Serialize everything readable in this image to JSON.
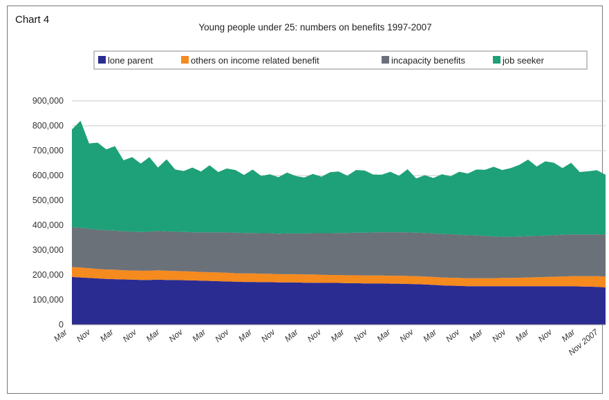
{
  "chart_label": "Chart 4",
  "chart_data": {
    "type": "area",
    "stacked": true,
    "title": "Young people under 25: numbers on benefits 1997-2007",
    "xlabel": "",
    "ylabel": "",
    "ylim": [
      0,
      900000
    ],
    "yticks": [
      0,
      100000,
      200000,
      300000,
      400000,
      500000,
      600000,
      700000,
      800000,
      900000
    ],
    "ytick_labels": [
      "0",
      "100,000",
      "200,000",
      "300,000",
      "400,000",
      "500,000",
      "600,000",
      "700,000",
      "800,000",
      "900,000"
    ],
    "grid": true,
    "legend_position": "top",
    "xtick_labels": [
      "Mar",
      "Nov",
      "Mar",
      "Nov",
      "Mar",
      "Nov",
      "Mar",
      "Nov",
      "Mar",
      "Nov",
      "Mar",
      "Nov",
      "Mar",
      "Nov",
      "Mar",
      "Nov",
      "Mar",
      "Nov",
      "Mar",
      "Nov",
      "Mar",
      "Nov",
      "Mar",
      "Nov 2007"
    ],
    "series": [
      {
        "name": "lone parent",
        "color": "#2b2c91",
        "values": [
          192000,
          190000,
          188000,
          186000,
          184000,
          183000,
          182000,
          181000,
          180000,
          180000,
          181000,
          180000,
          180000,
          179000,
          178000,
          177000,
          176000,
          175000,
          174000,
          173000,
          172000,
          172000,
          171000,
          171000,
          170000,
          170000,
          170000,
          169000,
          169000,
          168000,
          168000,
          168000,
          167000,
          167000,
          166000,
          166000,
          166000,
          165000,
          165000,
          164000,
          163000,
          162000,
          160000,
          158000,
          157000,
          156000,
          155000,
          155000,
          155000,
          155000,
          155000,
          155000,
          155000,
          155000,
          155000,
          155000,
          155000,
          155000,
          155000,
          154000,
          153000,
          152000,
          150000
        ]
      },
      {
        "name": "others on income related benefit",
        "color": "#f58a1f",
        "values": [
          40000,
          40000,
          39000,
          38000,
          38000,
          38000,
          37000,
          37000,
          37000,
          37000,
          38000,
          37000,
          36000,
          36000,
          36000,
          35000,
          35000,
          35000,
          35000,
          34000,
          34000,
          34000,
          34000,
          34000,
          33000,
          33000,
          33000,
          33000,
          33000,
          33000,
          32000,
          32000,
          32000,
          32000,
          32000,
          32000,
          32000,
          32000,
          32000,
          32000,
          32000,
          32000,
          32000,
          32000,
          32000,
          32000,
          32000,
          32000,
          32000,
          32000,
          33000,
          33000,
          34000,
          35000,
          36000,
          37000,
          38000,
          39000,
          40000,
          41000,
          42000,
          43000,
          44000
        ]
      },
      {
        "name": "incapacity benefits",
        "color": "#6b7178",
        "values": [
          160000,
          160000,
          159000,
          158000,
          158000,
          157000,
          157000,
          156000,
          156000,
          157000,
          158000,
          158000,
          158000,
          158000,
          158000,
          159000,
          160000,
          161000,
          162000,
          163000,
          163000,
          163000,
          163000,
          163000,
          163000,
          164000,
          164000,
          165000,
          166000,
          167000,
          168000,
          169000,
          170000,
          171000,
          172000,
          173000,
          174000,
          175000,
          175000,
          175000,
          175000,
          175000,
          175000,
          175000,
          175000,
          174000,
          173000,
          172000,
          170000,
          168000,
          166000,
          166000,
          166000,
          166000,
          166000,
          166000,
          167000,
          168000,
          168000,
          168000,
          168000,
          168000,
          168000
        ]
      },
      {
        "name": "job seeker",
        "color": "#1ea178",
        "values": [
          393000,
          430000,
          343000,
          350000,
          325000,
          340000,
          285000,
          300000,
          275000,
          300000,
          255000,
          290000,
          250000,
          245000,
          260000,
          245000,
          270000,
          243000,
          257000,
          252000,
          233000,
          255000,
          230000,
          237000,
          227000,
          245000,
          231000,
          225000,
          238000,
          227000,
          245000,
          247000,
          230000,
          252000,
          250000,
          233000,
          231000,
          243000,
          227000,
          254000,
          218000,
          232000,
          223000,
          240000,
          233000,
          253000,
          248000,
          265000,
          266000,
          280000,
          268000,
          276000,
          288000,
          308000,
          279000,
          299000,
          291000,
          268000,
          288000,
          251000,
          254000,
          258000,
          241000
        ]
      }
    ]
  }
}
